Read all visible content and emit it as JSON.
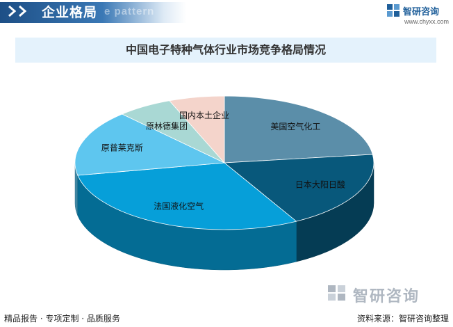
{
  "header": {
    "title": "企业格局",
    "watermark": "e pattern",
    "brand_name": "智研咨询",
    "brand_url": "www.chyxx.com"
  },
  "chart_data": {
    "type": "pie",
    "title": "中国电子特种气体行业市场竞争格局情况",
    "categories": [
      "美国空气化工",
      "日本大阳日酸",
      "法国液化空气",
      "原普莱克斯",
      "原林德集团",
      "国内本土企业"
    ],
    "values": [
      23,
      19,
      30,
      16,
      6,
      6
    ],
    "colors": [
      "#5b8ea9",
      "#08587b",
      "#069fd9",
      "#5ec6ef",
      "#a9d8d4",
      "#f4d4cb"
    ],
    "values_note": null
  },
  "bottom_logo": "智研咨询",
  "footer": {
    "left": "精品报告 · 专项定制 · 品质服务",
    "right": "资料来源：智研咨询整理"
  }
}
